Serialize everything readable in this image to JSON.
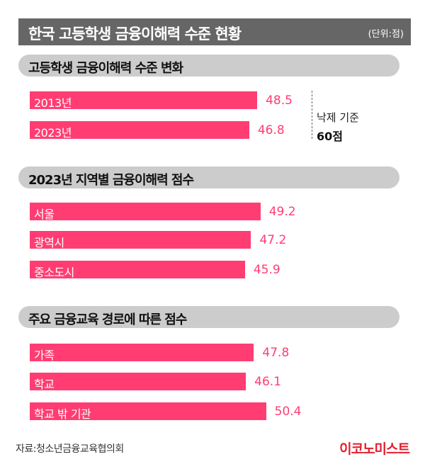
{
  "chart_data": {
    "type": "bar",
    "orientation": "horizontal",
    "title": "한국 고등학생 금융이해력 수준 현황",
    "unit": "(단위:점)",
    "colors": {
      "bar": "#ff3d73",
      "value": "#ff3d73",
      "header": "#666666",
      "section": "#cccccc"
    },
    "sections": [
      {
        "title": "고등학생 금융이해력 수준 변화",
        "categories": [
          "2013년",
          "2023년"
        ],
        "values": [
          48.5,
          46.8
        ],
        "value_labels": [
          "48.5",
          "46.8"
        ],
        "reference": {
          "label": "낙제 기준",
          "value_label": "60점",
          "value": 60
        }
      },
      {
        "title": "2023년 지역별 금융이해력 점수",
        "categories": [
          "서울",
          "광역시",
          "중소도시"
        ],
        "values": [
          49.2,
          47.2,
          45.9
        ],
        "value_labels": [
          "49.2",
          "47.2",
          "45.9"
        ]
      },
      {
        "title": "주요 금융교육 경로에 따른 점수",
        "categories": [
          "가족",
          "학교",
          "학교 밖 기관"
        ],
        "values": [
          47.8,
          46.1,
          50.4
        ],
        "value_labels": [
          "47.8",
          "46.1",
          "50.4"
        ]
      }
    ]
  },
  "footer": {
    "source": "자료:청소년금융교육협의회",
    "logo": "이코노미스트"
  }
}
